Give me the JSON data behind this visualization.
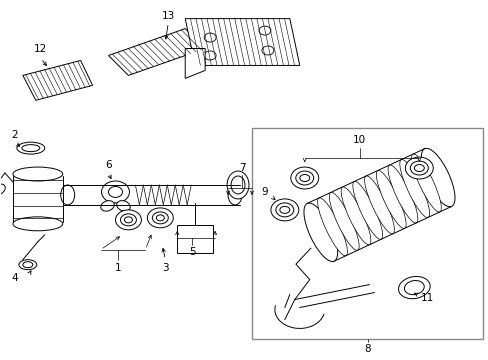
{
  "background_color": "#ffffff",
  "line_color": "#000000",
  "box_color": "#888888",
  "fig_width": 4.89,
  "fig_height": 3.6,
  "dpi": 100
}
